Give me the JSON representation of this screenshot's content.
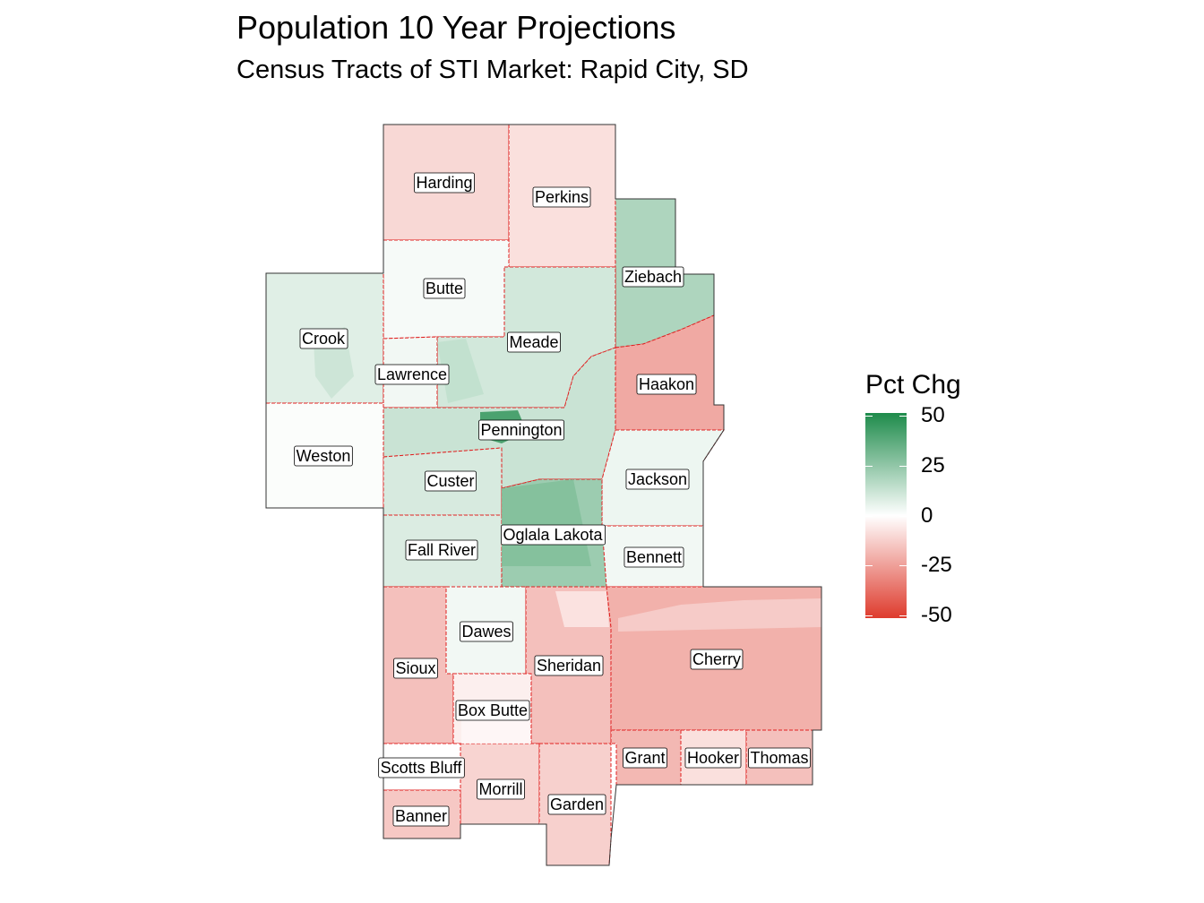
{
  "title": "Population 10 Year Projections",
  "subtitle": "Census Tracts of STI Market: Rapid City, SD",
  "legend": {
    "title": "Pct Chg",
    "ticks": [
      "50",
      "25",
      "0",
      "-25",
      "-50"
    ],
    "scale_min": -50,
    "scale_max": 50,
    "colors": {
      "high": "#1e8b4b",
      "mid": "#ffffff",
      "low": "#de3b2d"
    }
  },
  "boundary_color": "#e02020",
  "counties": [
    {
      "id": "harding",
      "name": "Harding",
      "pct": -10
    },
    {
      "id": "perkins",
      "name": "Perkins",
      "pct": -8
    },
    {
      "id": "ziebach",
      "name": "Ziebach",
      "pct": 18
    },
    {
      "id": "butte",
      "name": "Butte",
      "pct": 2
    },
    {
      "id": "meade",
      "name": "Meade",
      "pct": 10
    },
    {
      "id": "crook",
      "name": "Crook",
      "pct": 7
    },
    {
      "id": "lawrence",
      "name": "Lawrence",
      "pct": 3
    },
    {
      "id": "haakon",
      "name": "Haakon",
      "pct": -22
    },
    {
      "id": "pennington",
      "name": "Pennington",
      "pct": 12
    },
    {
      "id": "weston",
      "name": "Weston",
      "pct": 1
    },
    {
      "id": "custer",
      "name": "Custer",
      "pct": 9
    },
    {
      "id": "jackson",
      "name": "Jackson",
      "pct": 4
    },
    {
      "id": "fall-river",
      "name": "Fall River",
      "pct": 8
    },
    {
      "id": "oglala-lakota",
      "name": "Oglala Lakota",
      "pct": 22
    },
    {
      "id": "bennett",
      "name": "Bennett",
      "pct": 3
    },
    {
      "id": "dawes",
      "name": "Dawes",
      "pct": 3
    },
    {
      "id": "sioux",
      "name": "Sioux",
      "pct": -16
    },
    {
      "id": "sheridan",
      "name": "Sheridan",
      "pct": -16
    },
    {
      "id": "cherry",
      "name": "Cherry",
      "pct": -20
    },
    {
      "id": "box-butte",
      "name": "Box Butte",
      "pct": -4
    },
    {
      "id": "scotts-bluff",
      "name": "Scotts Bluff",
      "pct": 0
    },
    {
      "id": "morrill",
      "name": "Morrill",
      "pct": -11
    },
    {
      "id": "banner",
      "name": "Banner",
      "pct": -14
    },
    {
      "id": "garden",
      "name": "Garden",
      "pct": -12
    },
    {
      "id": "grant",
      "name": "Grant",
      "pct": -18
    },
    {
      "id": "hooker",
      "name": "Hooker",
      "pct": -8
    },
    {
      "id": "thomas",
      "name": "Thomas",
      "pct": -16
    }
  ]
}
